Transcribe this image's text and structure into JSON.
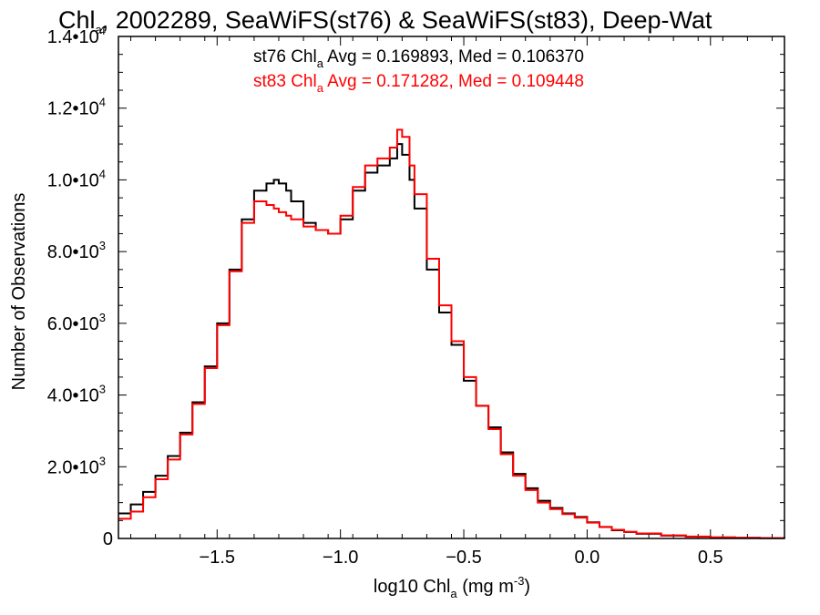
{
  "chart_data": {
    "type": "line",
    "title": {
      "prefix": "Chl",
      "sub": "a",
      "rest": ", 2002289, SeaWiFS(st76) & SeaWiFS(st83), Deep-Wat"
    },
    "xlabel": {
      "prefix": "log10 Chl",
      "sub": "a",
      "units": " (mg m",
      "sup": "-3",
      "close": ")"
    },
    "ylabel": "Number of Observations",
    "xlim": [
      -1.9,
      0.8
    ],
    "ylim": [
      0,
      14000
    ],
    "x_ticks": [
      {
        "value": -1.5,
        "label": "−1.5"
      },
      {
        "value": -1.0,
        "label": "−1.0"
      },
      {
        "value": -0.5,
        "label": "−0.5"
      },
      {
        "value": 0.0,
        "label": "0.0"
      },
      {
        "value": 0.5,
        "label": "0.5"
      }
    ],
    "y_ticks": [
      {
        "value": 0,
        "mant": "0",
        "exp": ""
      },
      {
        "value": 2000,
        "mant": "2.0•10",
        "exp": "3"
      },
      {
        "value": 4000,
        "mant": "4.0•10",
        "exp": "3"
      },
      {
        "value": 6000,
        "mant": "6.0•10",
        "exp": "3"
      },
      {
        "value": 8000,
        "mant": "8.0•10",
        "exp": "3"
      },
      {
        "value": 10000,
        "mant": "1.0•10",
        "exp": "4"
      },
      {
        "value": 12000,
        "mant": "1.2•10",
        "exp": "4"
      },
      {
        "value": 14000,
        "mant": "1.4•10",
        "exp": "4"
      }
    ],
    "annotations": [
      {
        "pre": "st76 Chl",
        "sub": "a",
        "post": " Avg = 0.169893, Med = 0.106370",
        "color": "#000000"
      },
      {
        "pre": "st83 Chl",
        "sub": "a",
        "post": " Avg = 0.171282, Med = 0.109448",
        "color": "#ff0000"
      }
    ],
    "series": [
      {
        "color": "#000000",
        "x": [
          -1.9,
          -1.85,
          -1.8,
          -1.75,
          -1.7,
          -1.65,
          -1.6,
          -1.55,
          -1.5,
          -1.45,
          -1.4,
          -1.35,
          -1.3,
          -1.27,
          -1.25,
          -1.22,
          -1.2,
          -1.15,
          -1.1,
          -1.05,
          -1.0,
          -0.95,
          -0.9,
          -0.85,
          -0.8,
          -0.77,
          -0.75,
          -0.72,
          -0.7,
          -0.65,
          -0.6,
          -0.55,
          -0.5,
          -0.45,
          -0.4,
          -0.35,
          -0.3,
          -0.25,
          -0.2,
          -0.15,
          -0.1,
          -0.05,
          0.0,
          0.05,
          0.1,
          0.15,
          0.2,
          0.3,
          0.4,
          0.5,
          0.6,
          0.7,
          0.8
        ],
        "y": [
          700,
          950,
          1300,
          1750,
          2300,
          2950,
          3800,
          4800,
          6000,
          7500,
          8900,
          9700,
          9900,
          10000,
          9900,
          9700,
          9400,
          8800,
          8600,
          8500,
          8900,
          9700,
          10200,
          10400,
          10600,
          11000,
          10700,
          10000,
          9200,
          7500,
          6300,
          5400,
          4400,
          3700,
          3100,
          2400,
          1800,
          1400,
          1050,
          850,
          700,
          600,
          450,
          320,
          230,
          180,
          130,
          80,
          50,
          30,
          18,
          10,
          5
        ]
      },
      {
        "color": "#ff0000",
        "x": [
          -1.9,
          -1.85,
          -1.8,
          -1.75,
          -1.7,
          -1.65,
          -1.6,
          -1.55,
          -1.5,
          -1.45,
          -1.4,
          -1.35,
          -1.3,
          -1.27,
          -1.25,
          -1.22,
          -1.2,
          -1.15,
          -1.1,
          -1.05,
          -1.0,
          -0.95,
          -0.9,
          -0.85,
          -0.8,
          -0.77,
          -0.75,
          -0.72,
          -0.7,
          -0.65,
          -0.6,
          -0.55,
          -0.5,
          -0.45,
          -0.4,
          -0.35,
          -0.3,
          -0.25,
          -0.2,
          -0.15,
          -0.1,
          -0.05,
          0.0,
          0.05,
          0.1,
          0.15,
          0.2,
          0.3,
          0.4,
          0.5,
          0.6,
          0.7,
          0.8
        ],
        "y": [
          550,
          750,
          1150,
          1650,
          2200,
          2900,
          3750,
          4750,
          5950,
          7450,
          8800,
          9400,
          9300,
          9200,
          9100,
          9000,
          8900,
          8700,
          8600,
          8500,
          9000,
          9800,
          10400,
          10600,
          10900,
          11400,
          11200,
          10400,
          9600,
          7800,
          6500,
          5500,
          4500,
          3700,
          3050,
          2350,
          1750,
          1350,
          1000,
          820,
          680,
          580,
          440,
          320,
          240,
          185,
          140,
          85,
          55,
          32,
          20,
          12,
          6
        ]
      }
    ]
  }
}
